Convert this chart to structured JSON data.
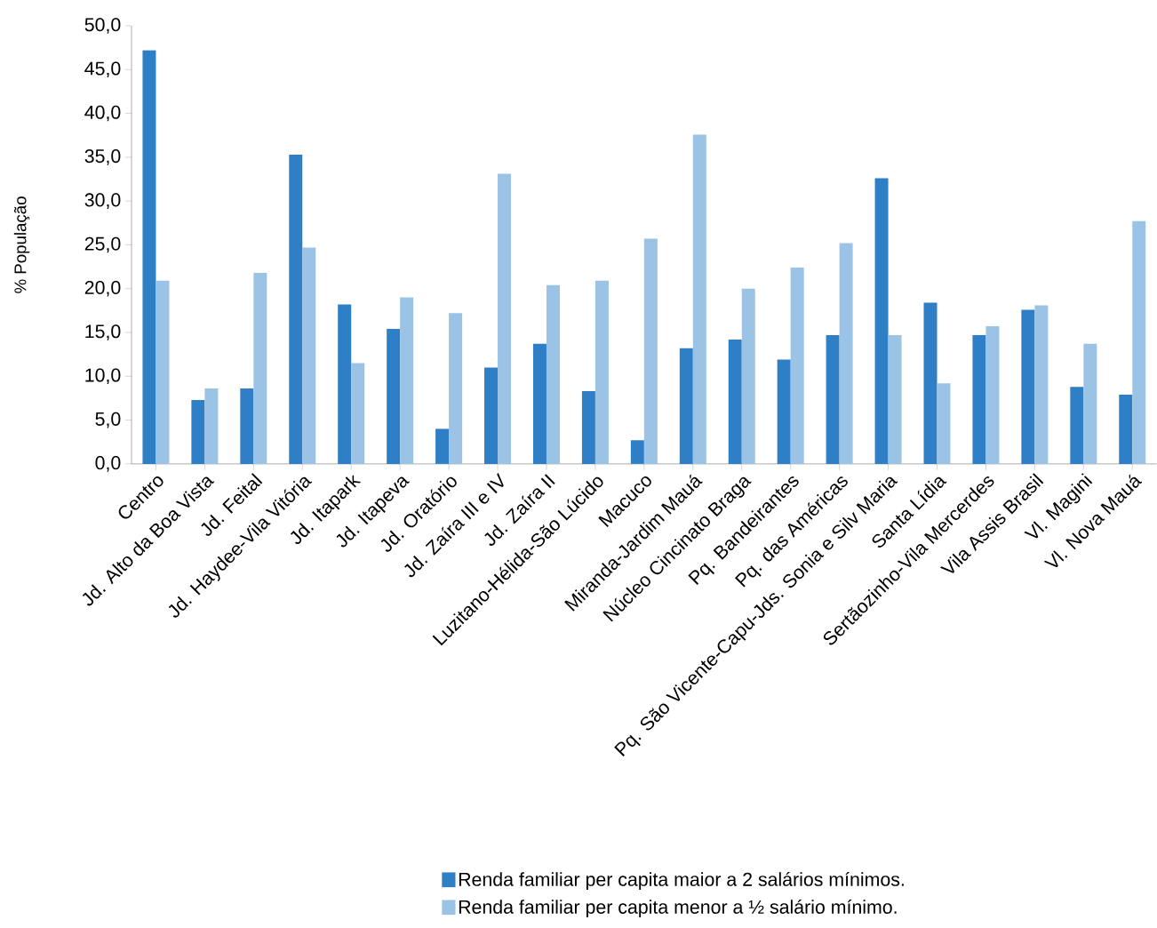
{
  "chart_data": {
    "type": "bar",
    "ylabel": "% População",
    "legend": "bottom",
    "categories": [
      "Centro",
      "Jd. Alto da Boa Vista",
      "Jd. Feital",
      "Jd. Haydee-Vila Vitória",
      "Jd. Itapark",
      "Jd. Itapeva",
      "Jd. Oratório",
      "Jd. Zaíra III e IV",
      "Jd. Zaíra II",
      "Luzitano-Hélida-São Lúcido",
      "Macuco",
      "Miranda-Jardim Mauá",
      "Núcleo Cincinato Braga",
      "Pq. Bandeirantes",
      "Pq. das Américas",
      "Pq. São Vicente-Capu-Jds. Sonia e Silv Maria",
      "Santa Lídia",
      "Sertãozinho-Vila Mercerdes",
      "Vila Assis Brasil",
      "Vl. Magini",
      "Vl. Nova Mauá"
    ],
    "ylim": [
      0,
      50
    ],
    "yticks": [
      {
        "value": 0,
        "label": "0,0"
      },
      {
        "value": 5,
        "label": "5,0"
      },
      {
        "value": 10,
        "label": "10,0"
      },
      {
        "value": 15,
        "label": "15,0"
      },
      {
        "value": 20,
        "label": "20,0"
      },
      {
        "value": 25,
        "label": "25,0"
      },
      {
        "value": 30,
        "label": "30,0"
      },
      {
        "value": 35,
        "label": "35,0"
      },
      {
        "value": 40,
        "label": "40,0"
      },
      {
        "value": 45,
        "label": "45,0"
      },
      {
        "value": 50,
        "label": "50,0"
      }
    ],
    "series": [
      {
        "name": "Renda familiar per capita maior a 2 salários mínimos.",
        "color": "#2e7fc6",
        "values": [
          47.2,
          7.3,
          8.6,
          35.3,
          18.2,
          15.4,
          4.0,
          11.0,
          13.7,
          8.3,
          2.7,
          13.2,
          14.2,
          11.9,
          14.7,
          32.6,
          18.4,
          14.7,
          17.6,
          8.8,
          7.9
        ]
      },
      {
        "name": "Renda familiar per capita menor a ½ salário mínimo.",
        "color": "#9bc3e6",
        "values": [
          20.9,
          8.6,
          21.8,
          24.7,
          11.5,
          19.0,
          17.2,
          33.1,
          20.4,
          20.9,
          25.7,
          37.6,
          20.0,
          22.4,
          25.2,
          14.7,
          9.2,
          15.7,
          18.1,
          13.7,
          27.7
        ]
      }
    ]
  }
}
